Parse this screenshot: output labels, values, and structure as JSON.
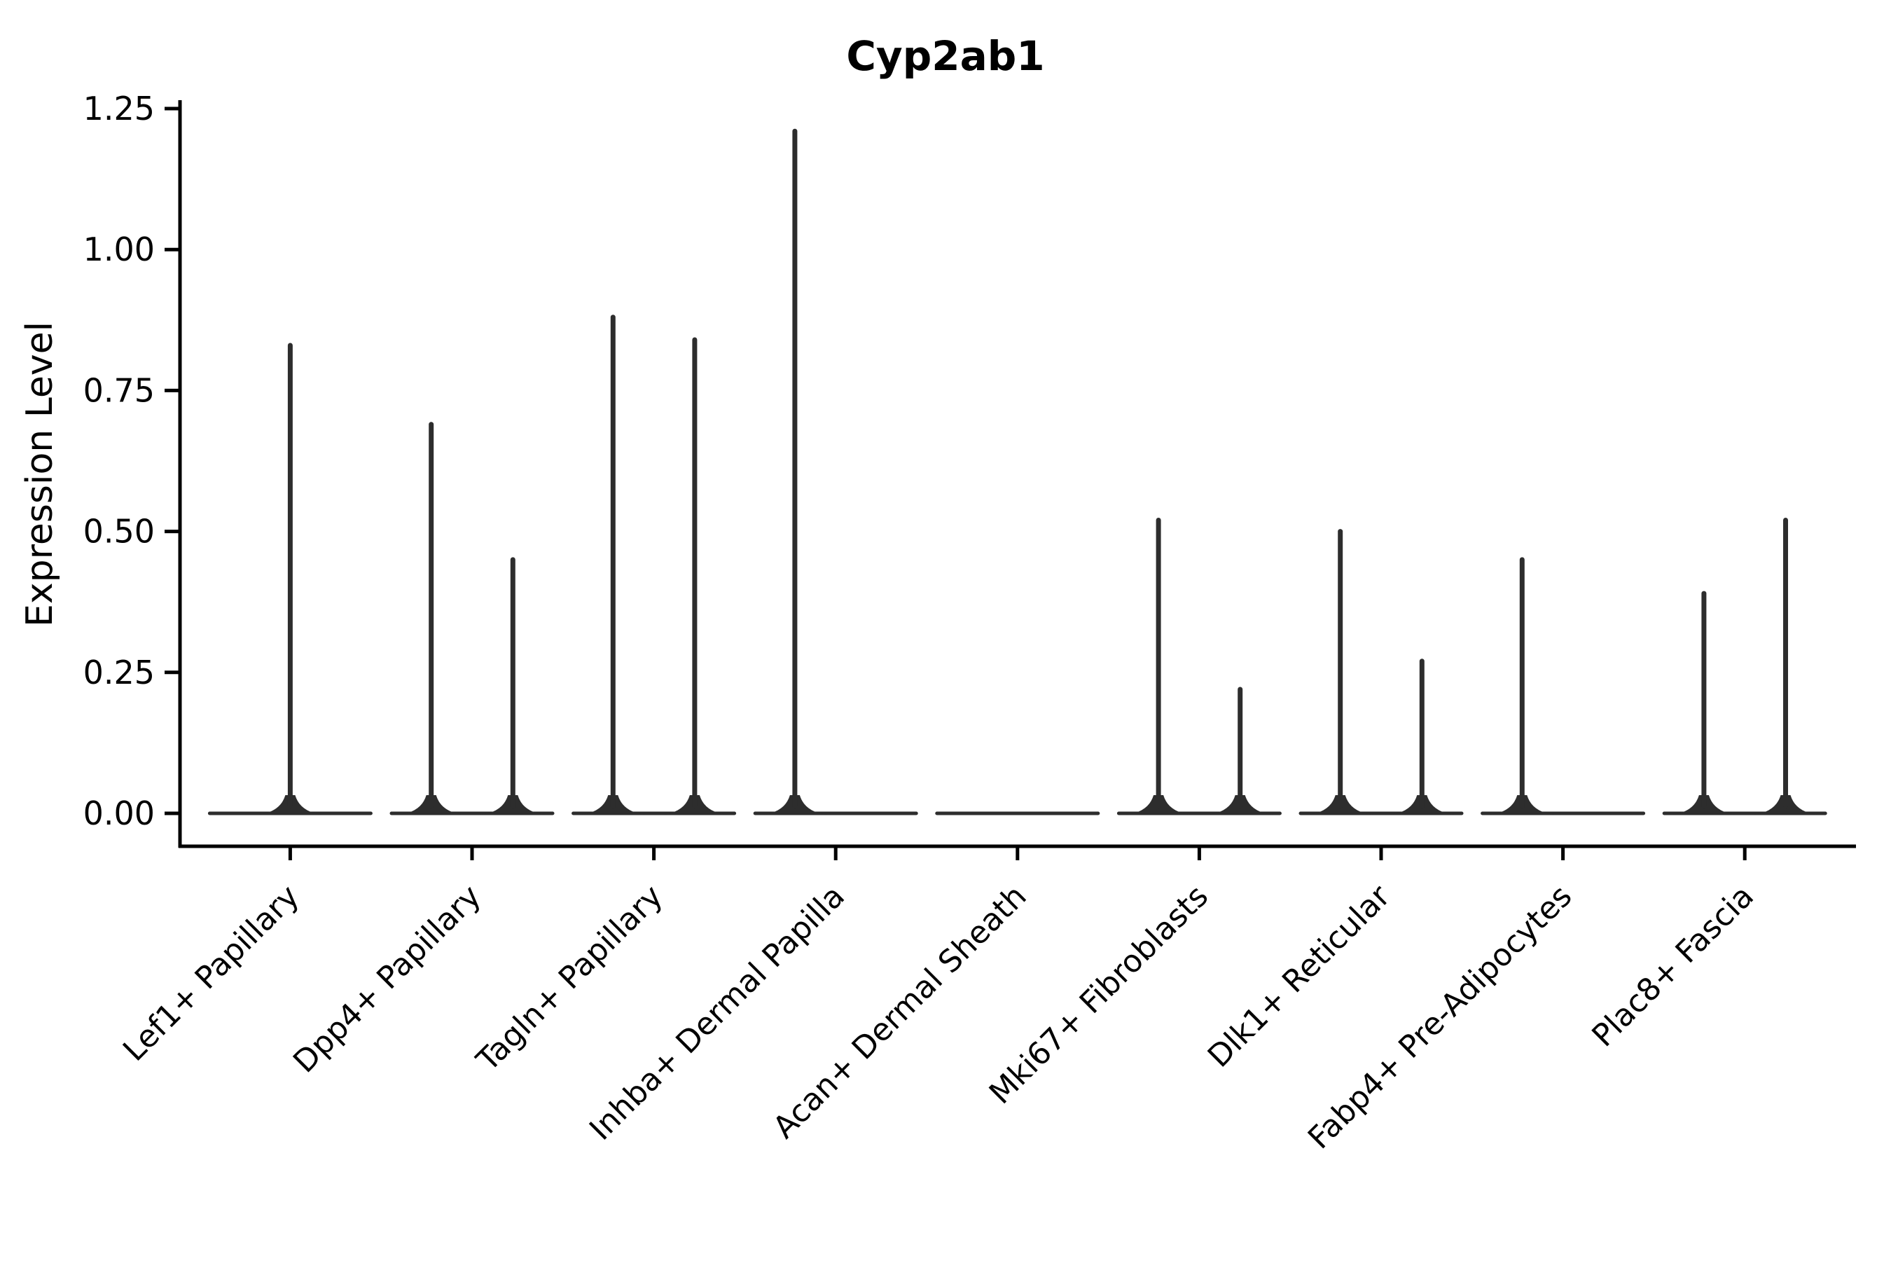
{
  "figure": {
    "title": "Cyp2ab1"
  },
  "chart_data": {
    "type": "violin",
    "title": "Cyp2ab1",
    "xlabel": "",
    "ylabel": "Expression Level",
    "ylim": [
      0,
      1.25
    ],
    "yticks": [
      0,
      0.25,
      0.5,
      0.75,
      1.0,
      1.25
    ],
    "ytick_labels": [
      "0.00",
      "0.25",
      "0.50",
      "0.75",
      "1.00",
      "1.25"
    ],
    "grid": false,
    "legend": false,
    "baseline_value": 0,
    "line_color": "#2d2d2d",
    "axis_color": "#000000",
    "categories": [
      "Lef1+ Papillary",
      "Dpp4+ Papillary",
      "Tagln+ Papillary",
      "Inhba+ Dermal Papilla",
      "Acan+ Dermal Sheath",
      "Mki67+ Fibroblasts",
      "Dlk1+ Reticular",
      "Fabp4+ Pre-Adipocytes",
      "Plac8+ Fascia"
    ],
    "series": [
      {
        "category": "Lef1+ Papillary",
        "violins": [
          {
            "side": "center",
            "peak": 0.83
          }
        ]
      },
      {
        "category": "Dpp4+ Papillary",
        "violins": [
          {
            "side": "left",
            "peak": 0.69
          },
          {
            "side": "right",
            "peak": 0.45
          }
        ]
      },
      {
        "category": "Tagln+ Papillary",
        "violins": [
          {
            "side": "left",
            "peak": 0.88
          },
          {
            "side": "right",
            "peak": 0.84
          }
        ]
      },
      {
        "category": "Inhba+ Dermal Papilla",
        "violins": [
          {
            "side": "left",
            "peak": 1.21
          }
        ]
      },
      {
        "category": "Acan+ Dermal Sheath",
        "violins": []
      },
      {
        "category": "Mki67+ Fibroblasts",
        "violins": [
          {
            "side": "left",
            "peak": 0.52
          },
          {
            "side": "right",
            "peak": 0.22
          }
        ]
      },
      {
        "category": "Dlk1+ Reticular",
        "violins": [
          {
            "side": "left",
            "peak": 0.5
          },
          {
            "side": "right",
            "peak": 0.27
          }
        ]
      },
      {
        "category": "Fabp4+ Pre-Adipocytes",
        "violins": [
          {
            "side": "left",
            "peak": 0.45
          }
        ]
      },
      {
        "category": "Plac8+ Fascia",
        "violins": [
          {
            "side": "left",
            "peak": 0.39
          },
          {
            "side": "right",
            "peak": 0.52
          }
        ]
      }
    ]
  }
}
